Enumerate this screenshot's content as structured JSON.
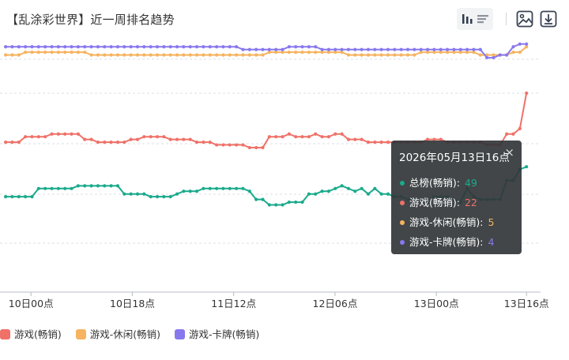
{
  "title": "【乱涂彩世界】近一周排名趋势",
  "toolbar": {
    "icons": [
      "bar-chart-icon",
      "list-icon",
      "image-icon",
      "download-icon"
    ]
  },
  "tooltip": {
    "title": "2026年05月13日16点",
    "close": "×",
    "rows": [
      {
        "label": "总榜(畅销):",
        "value": "49",
        "color": "#1aaa8c"
      },
      {
        "label": "游戏(畅销):",
        "value": "22",
        "color": "#ef7168"
      },
      {
        "label": "游戏-休闲(畅销):",
        "value": "5",
        "color": "#f6b360"
      },
      {
        "label": "游戏-卡牌(畅销):",
        "value": "4",
        "color": "#8878ee"
      }
    ]
  },
  "legend": [
    {
      "label": "游戏(畅销)",
      "color": "#ef7168"
    },
    {
      "label": "游戏-休闲(畅销)",
      "color": "#f6b360"
    },
    {
      "label": "游戏-卡牌(畅销)",
      "color": "#8878ee"
    }
  ],
  "chart_data": {
    "type": "line",
    "yaxis": {
      "inverted": true,
      "labels_visible": false,
      "ylim": [
        0,
        95
      ]
    },
    "grid": "horizontal-dashed",
    "x_tick_labels": [
      "10日00点",
      "10日18点",
      "11日12点",
      "12日06点",
      "13日00点",
      "13日16点"
    ],
    "x_tick_hours": [
      24,
      42,
      60,
      78,
      96,
      112
    ],
    "x_range_hours": [
      18.5,
      114.5
    ],
    "series": [
      {
        "name": "总榜(畅销)",
        "color": "#1aaa8c",
        "values": [
          60,
          60,
          60,
          60,
          60,
          57,
          57,
          57,
          57,
          57,
          57,
          56,
          56,
          56,
          56,
          56,
          56,
          56,
          59,
          59,
          59,
          59,
          60,
          60,
          60,
          60,
          59,
          58,
          58,
          58,
          57,
          57,
          57,
          57,
          57,
          57,
          57,
          58,
          61,
          61,
          63,
          63,
          63,
          62,
          62,
          62,
          59,
          59,
          58,
          58,
          57,
          56,
          57,
          58,
          57,
          59,
          57,
          59,
          59,
          60,
          60,
          61,
          61,
          61,
          62,
          60,
          60,
          60,
          61,
          62,
          57,
          60,
          61,
          61,
          61,
          61,
          54,
          54,
          50,
          49
        ]
      },
      {
        "name": "游戏(畅销)",
        "color": "#ef7168",
        "values": [
          40,
          40,
          40,
          38,
          38,
          38,
          38,
          37,
          37,
          37,
          37,
          37,
          39,
          39,
          40,
          40,
          40,
          40,
          40,
          39,
          39,
          38,
          38,
          38,
          38,
          39,
          39,
          39,
          39,
          40,
          40,
          40,
          41,
          41,
          41,
          41,
          41,
          42,
          42,
          42,
          38,
          38,
          38,
          37,
          38,
          38,
          38,
          37,
          38,
          38,
          37,
          37,
          39,
          39,
          39,
          40,
          40,
          40,
          40,
          40,
          40,
          40,
          40,
          40,
          39,
          39,
          39,
          40,
          40,
          40,
          40,
          40,
          40,
          41,
          41,
          41,
          37,
          37,
          35,
          22
        ]
      },
      {
        "name": "游戏-休闲(畅销)",
        "color": "#f6b360",
        "values": [
          8,
          8,
          8,
          7,
          7,
          7,
          7,
          7,
          7,
          7,
          7,
          7,
          7,
          8,
          8,
          8,
          8,
          8,
          8,
          8,
          8,
          8,
          8,
          8,
          8,
          8,
          8,
          8,
          8,
          8,
          8,
          8,
          8,
          8,
          8,
          8,
          8,
          8,
          8,
          8,
          7,
          7,
          7,
          7,
          7,
          7,
          7,
          7,
          7,
          7,
          7,
          7,
          8,
          8,
          8,
          8,
          8,
          8,
          8,
          8,
          8,
          8,
          8,
          7,
          7,
          7,
          7,
          7,
          7,
          7,
          7,
          7,
          8,
          8,
          8,
          8,
          8,
          7,
          7,
          5
        ]
      },
      {
        "name": "游戏-卡牌(畅销)",
        "color": "#8878ee",
        "values": [
          5,
          5,
          5,
          5,
          5,
          5,
          5,
          5,
          5,
          5,
          5,
          5,
          5,
          5,
          5,
          5,
          5,
          5,
          5,
          5,
          5,
          5,
          5,
          5,
          5,
          5,
          5,
          5,
          5,
          5,
          5,
          5,
          5,
          5,
          5,
          5,
          6,
          6,
          6,
          6,
          6,
          6,
          6,
          5,
          5,
          5,
          5,
          5,
          6,
          6,
          6,
          6,
          6,
          6,
          6,
          6,
          6,
          6,
          6,
          6,
          6,
          6,
          6,
          6,
          6,
          6,
          6,
          6,
          6,
          6,
          6,
          6,
          6,
          9,
          9,
          8,
          8,
          5,
          4,
          4
        ]
      }
    ]
  }
}
